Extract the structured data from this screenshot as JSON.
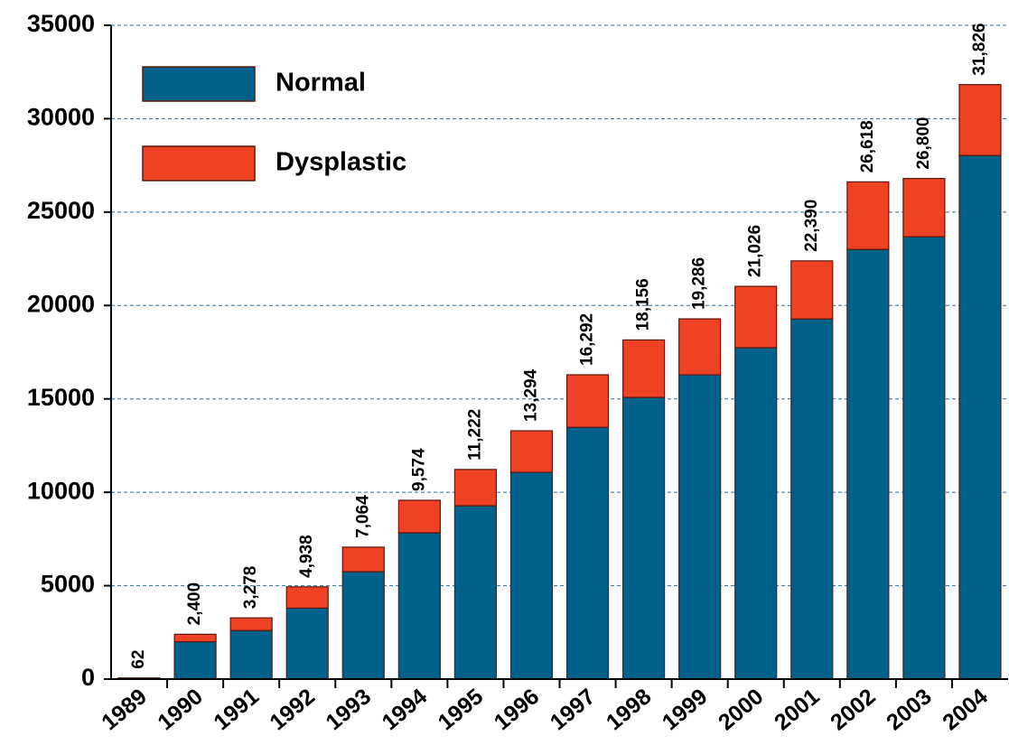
{
  "chart_data": {
    "type": "stacked_bar",
    "categories": [
      "1989",
      "1990",
      "1991",
      "1992",
      "1993",
      "1994",
      "1995",
      "1996",
      "1997",
      "1998",
      "1999",
      "2000",
      "2001",
      "2002",
      "2003",
      "2004"
    ],
    "series": [
      {
        "name": "Normal",
        "color": "#00628b",
        "values": [
          50,
          2000,
          2600,
          3800,
          5750,
          7830,
          9280,
          11070,
          13480,
          15080,
          16290,
          17740,
          19280,
          23000,
          23680,
          28030
        ]
      },
      {
        "name": "Dysplastic",
        "color": "#ef4123",
        "values": [
          12,
          400,
          678,
          1138,
          1314,
          1744,
          1942,
          2224,
          2812,
          3076,
          2996,
          3286,
          3110,
          3618,
          3120,
          3796
        ]
      }
    ],
    "total_labels": [
      "62",
      "2,400",
      "3,278",
      "4,938",
      "7,064",
      "9,574",
      "11,222",
      "13,294",
      "16,292",
      "18,156",
      "19,286",
      "21,026",
      "22,390",
      "26,618",
      "26,800",
      "31,826"
    ],
    "ylim": [
      0,
      35000
    ],
    "yticks": [
      0,
      5000,
      10000,
      15000,
      20000,
      25000,
      30000,
      35000
    ],
    "grid": true,
    "legend": "top-left"
  }
}
